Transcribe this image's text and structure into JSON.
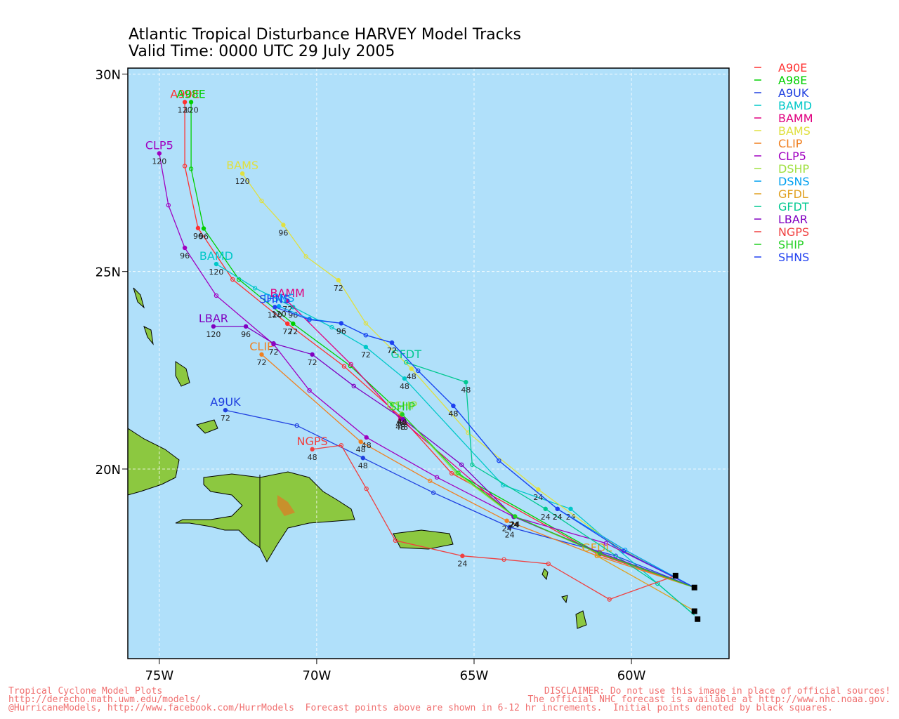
{
  "chart_data": {
    "type": "track",
    "title": "Atlantic Tropical Disturbance HARVEY Model Tracks",
    "subtitle": "Valid Time: 0000 UTC 29 July 2005",
    "xlim": [
      -76,
      -56.9
    ],
    "ylim": [
      15.2,
      30.15
    ],
    "xticks": [
      {
        "value": -75,
        "label": "75W"
      },
      {
        "value": -70,
        "label": "70W"
      },
      {
        "value": -65,
        "label": "65W"
      },
      {
        "value": -60,
        "label": "60W"
      }
    ],
    "yticks": [
      {
        "value": 20,
        "label": "20N"
      },
      {
        "value": 25,
        "label": "25N"
      },
      {
        "value": 30,
        "label": "30N"
      }
    ],
    "grid": true,
    "legend": "right",
    "series": [
      {
        "name": "A90E",
        "color": "#ff3030",
        "x": [
          -58.0,
          -61.08,
          -65.71,
          -67.34,
          -69.13,
          -70.93,
          -72.67,
          -73.77,
          -74.19,
          -74.19
        ],
        "values": [
          17.0,
          17.85,
          19.89,
          21.33,
          22.6,
          23.68,
          24.8,
          26.1,
          27.67,
          29.29
        ],
        "hour_labels": [
          null,
          null,
          null,
          48,
          null,
          72,
          null,
          96,
          null,
          120
        ]
      },
      {
        "name": "A98E",
        "color": "#00d000",
        "x": [
          -58.0,
          -61.05,
          -65.55,
          -67.3,
          -68.93,
          -70.75,
          -72.47,
          -73.59,
          -73.99,
          -73.99
        ],
        "values": [
          17.0,
          17.87,
          19.89,
          21.4,
          22.61,
          23.68,
          24.8,
          26.09,
          27.6,
          29.29
        ],
        "hour_labels": [
          null,
          null,
          null,
          48,
          null,
          72,
          null,
          96,
          null,
          120
        ]
      },
      {
        "name": "A9UK",
        "color": "#2040e0",
        "x": [
          -58.0,
          -60.5,
          -63.87,
          -66.29,
          -68.53,
          -70.63,
          -72.9
        ],
        "values": [
          17.0,
          17.8,
          18.53,
          19.4,
          20.28,
          21.1,
          21.49
        ],
        "hour_labels": [
          null,
          null,
          24,
          null,
          48,
          null,
          72
        ]
      },
      {
        "name": "BAMD",
        "color": "#00c8c8",
        "x": [
          -58.0,
          -59.17,
          -61.93,
          -64.08,
          -67.21,
          -68.44,
          -69.52,
          -70.75,
          -71.96,
          -73.19
        ],
        "values": [
          16.3,
          17.1,
          18.99,
          19.59,
          22.29,
          23.09,
          23.59,
          24.1,
          24.58,
          25.19
        ],
        "hour_labels": [
          null,
          null,
          24,
          null,
          48,
          72,
          null,
          96,
          null,
          120
        ]
      },
      {
        "name": "BAMM",
        "color": "#e0007f",
        "x": [
          -58.0,
          -61.0,
          -63.72,
          -67.34,
          -68.91,
          -70.93
        ],
        "values": [
          17.0,
          17.85,
          18.79,
          21.26,
          22.65,
          24.25
        ],
        "hour_labels": [
          null,
          null,
          24,
          48,
          null,
          72
        ]
      },
      {
        "name": "BAMS",
        "color": "#e0e040",
        "x": [
          -58.0,
          -60.4,
          -62.96,
          -65.19,
          -66.99,
          -68.44,
          -69.31,
          -70.34,
          -71.06,
          -71.75,
          -72.36
        ],
        "values": [
          17.0,
          18.0,
          19.48,
          20.92,
          22.54,
          23.69,
          24.78,
          25.38,
          26.18,
          26.79,
          27.48
        ],
        "hour_labels": [
          null,
          null,
          24,
          null,
          48,
          null,
          72,
          null,
          96,
          null,
          120
        ]
      },
      {
        "name": "CLIP",
        "color": "#f08020",
        "x": [
          -58.0,
          -61.08,
          -63.96,
          -66.4,
          -68.6,
          -71.75
        ],
        "values": [
          17.0,
          17.8,
          18.69,
          19.7,
          20.69,
          22.9
        ],
        "hour_labels": [
          null,
          null,
          24,
          null,
          48,
          72
        ]
      },
      {
        "name": "CLP5",
        "color": "#a000c0",
        "x": [
          -58.0,
          -60.81,
          -63.74,
          -66.18,
          -68.42,
          -70.23,
          -71.37,
          -73.19,
          -74.19,
          -74.71,
          -75.0
        ],
        "values": [
          17.0,
          18.12,
          18.79,
          19.79,
          20.8,
          21.99,
          23.16,
          24.39,
          25.6,
          26.68,
          27.99
        ],
        "hour_labels": [
          null,
          null,
          24,
          null,
          48,
          null,
          72,
          null,
          96,
          null,
          120
        ]
      },
      {
        "name": "DSHP",
        "color": "#a0e040",
        "x": [
          -58.0,
          -61.05,
          -63.72,
          -65.55,
          -67.3
        ],
        "values": [
          17.0,
          17.87,
          18.79,
          19.89,
          21.4
        ],
        "hour_labels": [
          null,
          null,
          24,
          null,
          48
        ]
      },
      {
        "name": "DSNS",
        "color": "#00a0f0",
        "x": [
          -58.0,
          -60.2,
          -62.35,
          -64.21,
          -65.66,
          -66.78,
          -67.61,
          -68.44,
          -69.22,
          -70.23,
          -71.2
        ],
        "values": [
          17.0,
          17.95,
          18.99,
          20.21,
          21.6,
          22.49,
          23.2,
          23.39,
          23.69,
          23.8,
          24.12
        ],
        "hour_labels": [
          null,
          null,
          24,
          null,
          48,
          null,
          72,
          null,
          96,
          null,
          120
        ]
      },
      {
        "name": "GFDL",
        "color": "#e0a020",
        "x": [
          -58.0,
          -61.1
        ],
        "values": [
          16.41,
          17.8
        ],
        "hour_labels": [
          null,
          null
        ]
      },
      {
        "name": "GFDT",
        "color": "#00c890",
        "x": [
          -58.0,
          -59.17,
          -62.73,
          -65.06,
          -65.26,
          -67.16
        ],
        "values": [
          16.3,
          17.1,
          18.99,
          20.11,
          22.2,
          22.7
        ],
        "hour_labels": [
          null,
          null,
          24,
          null,
          48,
          null
        ]
      },
      {
        "name": "LBAR",
        "color": "#8000c0",
        "x": [
          -58.0,
          -61.01,
          -63.74,
          -65.4,
          -67.25,
          -68.82,
          -70.14,
          -71.37,
          -72.25,
          -73.28
        ],
        "values": [
          17.0,
          17.89,
          18.79,
          20.11,
          21.26,
          22.1,
          22.9,
          23.18,
          23.61,
          23.61
        ],
        "hour_labels": [
          null,
          null,
          24,
          null,
          48,
          null,
          72,
          null,
          96,
          120
        ]
      },
      {
        "name": "NGPS",
        "color": "#f04040",
        "x": [
          -58.6,
          -60.7,
          -62.64,
          -64.05,
          -65.37,
          -67.5,
          -68.42,
          -69.22,
          -70.14
        ],
        "values": [
          17.3,
          16.7,
          17.6,
          17.71,
          17.8,
          18.19,
          19.5,
          20.6,
          20.5
        ],
        "hour_labels": [
          null,
          null,
          null,
          null,
          24,
          null,
          null,
          null,
          48
        ]
      },
      {
        "name": "SHIP",
        "color": "#20d020",
        "x": [
          -58.0,
          -61.0,
          -63.7,
          -65.5,
          -67.28
        ],
        "values": [
          17.0,
          17.86,
          18.8,
          19.9,
          21.38
        ],
        "hour_labels": [
          null,
          null,
          24,
          null,
          48
        ]
      },
      {
        "name": "SHNS",
        "color": "#2040f0",
        "x": [
          -58.0,
          -60.25,
          -62.35,
          -64.21,
          -65.66,
          -66.78,
          -67.61,
          -68.44,
          -69.22,
          -70.23,
          -71.33
        ],
        "values": [
          17.0,
          17.92,
          18.99,
          20.21,
          21.6,
          22.49,
          23.2,
          23.39,
          23.69,
          23.78,
          24.1
        ],
        "hour_labels": [
          null,
          null,
          24,
          null,
          48,
          null,
          72,
          null,
          96,
          null,
          120
        ]
      }
    ],
    "initial_points": {
      "x": [
        -58.6,
        -58.0,
        -58.0,
        -57.9
      ],
      "values": [
        17.3,
        17.0,
        16.4,
        16.2
      ]
    },
    "footer_left": [
      "Tropical Cyclone Model Plots",
      "http://derecho.math.uwm.edu/models/",
      "@HurricaneModels, http://www.facebook.com/HurrModels  Forecast points above are shown in 6-12 hr increments.  Initial points denoted by black squares."
    ],
    "footer_right": [
      "DISCLAIMER: Do not use this image in place of official sources!",
      "The official NHC forecast is available at http://www.nhc.noaa.gov."
    ]
  }
}
